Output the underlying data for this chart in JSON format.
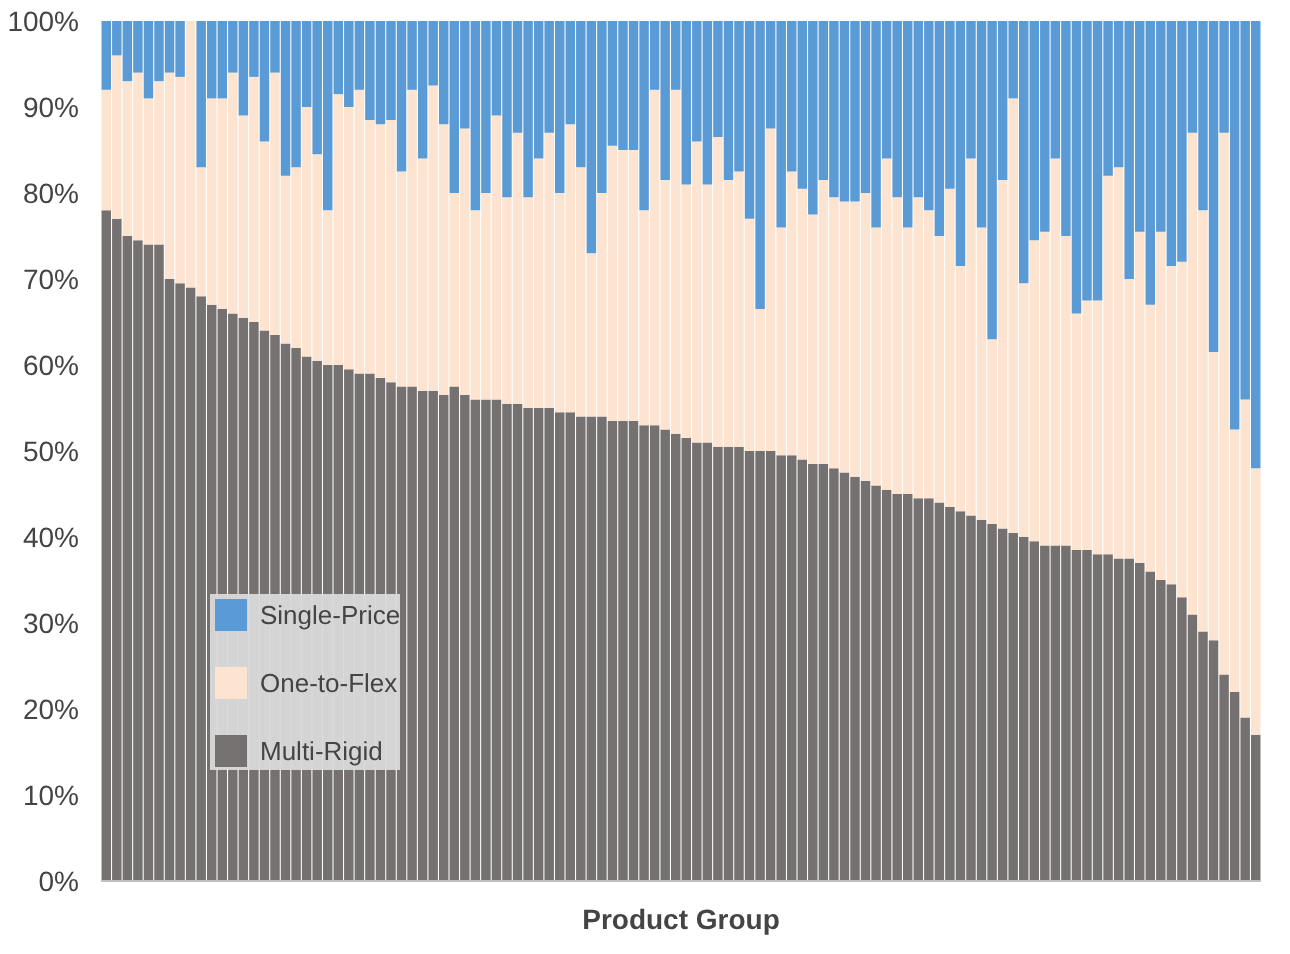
{
  "chart_data": {
    "type": "bar",
    "stacked": true,
    "xlabel": "Product Group",
    "categories": [
      null,
      null,
      null,
      null,
      null,
      null,
      null,
      null,
      null,
      null,
      null,
      null,
      null,
      null,
      null,
      null,
      null,
      null,
      null,
      null,
      null,
      null,
      null,
      null,
      null,
      null,
      null,
      null,
      null,
      null,
      null,
      null,
      null,
      null,
      null,
      null,
      null,
      null,
      null,
      null,
      null,
      null,
      null,
      null,
      null,
      null,
      null,
      null,
      null,
      null,
      null,
      null,
      null,
      null,
      null,
      null,
      null,
      null,
      null,
      null,
      null,
      null,
      null,
      null,
      null,
      null,
      null,
      null,
      null,
      null,
      null,
      null,
      null,
      null,
      null,
      null,
      null,
      null,
      null,
      null,
      null,
      null,
      null,
      null,
      null,
      null,
      null,
      null,
      null,
      null,
      null,
      null,
      null,
      null,
      null,
      null,
      null,
      null,
      null,
      null,
      null,
      null,
      null,
      null,
      null,
      null,
      null,
      null,
      null,
      null
    ],
    "series": [
      {
        "name": "Multi-Rigid",
        "color": "#767171",
        "values": [
          78,
          77,
          75,
          74.5,
          74,
          74,
          70,
          69.5,
          69,
          68,
          67,
          66.5,
          66,
          65.5,
          65,
          64,
          63.5,
          62.5,
          62,
          61,
          60.5,
          60,
          60,
          59.5,
          59,
          59,
          58.5,
          58,
          57.5,
          57.5,
          57,
          57,
          56.5,
          57.5,
          56.5,
          56,
          56,
          56,
          55.5,
          55.5,
          55,
          55,
          55,
          54.5,
          54.5,
          54,
          54,
          54,
          53.5,
          53.5,
          53.5,
          53,
          53,
          52.5,
          52,
          51.5,
          51,
          51,
          50.5,
          50.5,
          50.5,
          50,
          50,
          50,
          49.5,
          49.5,
          49,
          48.5,
          48.5,
          48,
          47.5,
          47,
          46.5,
          46,
          45.5,
          45,
          45,
          44.5,
          44.5,
          44,
          43.5,
          43,
          42.5,
          42,
          41.5,
          41,
          40.5,
          40,
          39.5,
          39,
          39,
          39,
          38.5,
          38.5,
          38,
          38,
          37.5,
          37.5,
          37,
          36,
          35,
          34.5,
          33,
          31,
          29,
          28,
          24,
          22,
          19,
          17
        ]
      },
      {
        "name": "One-to-Flex",
        "color": "#fde4d0",
        "values": [
          14,
          19,
          18,
          19.5,
          17,
          19,
          24,
          24,
          31,
          15,
          24,
          24.5,
          28,
          23.5,
          28.5,
          22,
          30.5,
          19.5,
          21,
          29,
          24,
          18,
          31.5,
          30.5,
          33,
          29.5,
          29.5,
          30.5,
          25,
          34.5,
          27,
          35.5,
          31.5,
          22.5,
          31,
          22,
          24,
          33,
          24,
          31.5,
          24.5,
          29,
          32,
          25.5,
          33.5,
          29,
          19,
          26,
          32,
          31.5,
          31.5,
          25,
          39,
          29,
          40,
          29.5,
          35,
          30,
          36,
          31,
          32,
          27,
          16.5,
          37.5,
          26.5,
          33,
          31.5,
          29,
          33,
          31.5,
          31.5,
          32,
          33.5,
          30,
          38.5,
          34.5,
          31,
          35,
          33.5,
          31,
          37,
          28.5,
          41.5,
          34,
          21.5,
          40.5,
          50.5,
          29.5,
          35,
          36.5,
          45,
          36,
          27.5,
          29,
          29.5,
          44,
          45.5,
          32.5,
          38.5,
          31,
          40.5,
          37,
          39,
          56,
          49,
          33.5,
          63,
          30.5,
          37,
          31
        ]
      },
      {
        "name": "Single-Price",
        "color": "#5b9bd5",
        "values": [
          8,
          4,
          7,
          6,
          9,
          7,
          6,
          6.5,
          0,
          17,
          9,
          9,
          6,
          11,
          6.5,
          14,
          6,
          18,
          17,
          10,
          15.5,
          22,
          8.5,
          10,
          8,
          11.5,
          12,
          11.5,
          17.5,
          8,
          16,
          7.5,
          12,
          20,
          12.5,
          22,
          20,
          11,
          20.5,
          13,
          20.5,
          16,
          13,
          20,
          12,
          17,
          27,
          20,
          14.5,
          15,
          15,
          22,
          8,
          18.5,
          8,
          19,
          14,
          19,
          13.5,
          18.5,
          17.5,
          23,
          33.5,
          12.5,
          24,
          17.5,
          19.5,
          22.5,
          18.5,
          20.5,
          21,
          21,
          20,
          24,
          16,
          20.5,
          24,
          20.5,
          22,
          25,
          19.5,
          28.5,
          16,
          24,
          37,
          18.5,
          9,
          30.5,
          25.5,
          24.5,
          16,
          25,
          34,
          32.5,
          32.5,
          18,
          17,
          30,
          24.5,
          33,
          24.5,
          28.5,
          28,
          13,
          22,
          38.5,
          13,
          47.5,
          44,
          52
        ]
      }
    ],
    "ylim": [
      0,
      100
    ],
    "yticks": [
      {
        "value": 0,
        "label": "0%"
      },
      {
        "value": 10,
        "label": "10%"
      },
      {
        "value": 20,
        "label": "20%"
      },
      {
        "value": 30,
        "label": "30%"
      },
      {
        "value": 40,
        "label": "40%"
      },
      {
        "value": 50,
        "label": "50%"
      },
      {
        "value": 60,
        "label": "60%"
      },
      {
        "value": 70,
        "label": "70%"
      },
      {
        "value": 80,
        "label": "80%"
      },
      {
        "value": 90,
        "label": "90%"
      },
      {
        "value": 100,
        "label": "100%"
      }
    ],
    "legend": "bottom left"
  }
}
